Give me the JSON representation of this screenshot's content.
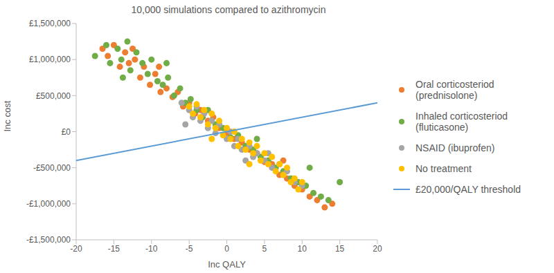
{
  "chart_data": {
    "type": "scatter",
    "title": "10,000 simulations compared to azithromycin",
    "x_label": "Inc QALY",
    "y_label": "Inc cost",
    "xlim": [
      -20,
      20
    ],
    "xticks": [
      -20,
      -15,
      -10,
      -5,
      0,
      5,
      10,
      15,
      20
    ],
    "ylim": [
      -1500000,
      1500000
    ],
    "yticks": [
      {
        "value": -1500000,
        "label": "-£1,500,000"
      },
      {
        "value": -1000000,
        "label": "-£1,000,000"
      },
      {
        "value": -500000,
        "label": "-£500,000"
      },
      {
        "value": 0,
        "label": "£0"
      },
      {
        "value": 500000,
        "label": "£500,000"
      },
      {
        "value": 1000000,
        "label": "£1,000,000"
      },
      {
        "value": 1500000,
        "label": "£1,500,000"
      }
    ],
    "grid": false,
    "legend": "right",
    "series": [
      {
        "name": "Oral corticosteriod (prednisolone)",
        "type": "scatter",
        "marker": "circle",
        "color": "#ed7d31",
        "x": [
          -16.5,
          -15.8,
          -15,
          -14.2,
          -13.5,
          -13,
          -12.2,
          -11.5,
          -11,
          -10.2,
          -9.5,
          -8.8,
          -8,
          -7.2,
          -6.5,
          -5.8,
          -5,
          -4.2,
          -3.5,
          -2.5,
          -1.8,
          -1,
          0,
          1,
          2,
          3,
          4,
          5,
          6,
          7,
          8,
          9,
          10,
          11,
          12,
          13,
          14,
          7.5,
          -12.5,
          -9
        ],
        "values": [
          1150000,
          1050000,
          1200000,
          900000,
          1100000,
          950000,
          1000000,
          750000,
          900000,
          650000,
          800000,
          550000,
          600000,
          480000,
          550000,
          350000,
          400000,
          250000,
          300000,
          150000,
          200000,
          50000,
          -20000,
          -100000,
          -150000,
          -250000,
          -300000,
          -420000,
          -450000,
          -600000,
          -650000,
          -750000,
          -800000,
          -900000,
          -950000,
          -1050000,
          -1000000,
          -400000,
          1150000,
          900000
        ]
      },
      {
        "name": "Inhaled corticosteriod (fluticasone)",
        "type": "scatter",
        "marker": "circle",
        "color": "#70ad47",
        "x": [
          -17.5,
          -16,
          -15.5,
          -14.5,
          -14,
          -13.2,
          -12.8,
          -12,
          -11.2,
          -10.5,
          -10,
          -9.2,
          -8.5,
          -7.8,
          -7,
          -6.2,
          -5.5,
          -4.8,
          -4,
          -3.2,
          -2.5,
          -1.5,
          -0.5,
          0.5,
          1.5,
          2.5,
          3.5,
          4.5,
          5.5,
          6.5,
          7.5,
          8.5,
          9.5,
          10.5,
          11.5,
          12.5,
          13.5,
          15,
          11,
          -13.8,
          -8,
          4
        ],
        "values": [
          1050000,
          1200000,
          950000,
          1150000,
          1000000,
          1250000,
          850000,
          1100000,
          950000,
          800000,
          1000000,
          700000,
          650000,
          750000,
          500000,
          600000,
          400000,
          450000,
          300000,
          200000,
          300000,
          100000,
          50000,
          -80000,
          -50000,
          -200000,
          -250000,
          -350000,
          -400000,
          -500000,
          -550000,
          -650000,
          -700000,
          -750000,
          -850000,
          -900000,
          -950000,
          -700000,
          -500000,
          750000,
          950000,
          -100000
        ]
      },
      {
        "name": "NSAID (ibuprofen)",
        "type": "scatter",
        "marker": "circle",
        "color": "#a5a5a5",
        "x": [
          -6,
          -5,
          -4.5,
          -4,
          -3.5,
          -3,
          -2.5,
          -2,
          -1.5,
          -1,
          0,
          0.5,
          1,
          1.5,
          2,
          3,
          3.5,
          4,
          5,
          5.5,
          6,
          7,
          7.5,
          8,
          9,
          10,
          -5.5,
          2.5
        ],
        "values": [
          400000,
          300000,
          200000,
          350000,
          150000,
          250000,
          50000,
          150000,
          -20000,
          100000,
          -100000,
          0,
          -200000,
          -100000,
          -250000,
          -200000,
          -350000,
          -300000,
          -400000,
          -300000,
          -500000,
          -450000,
          -600000,
          -550000,
          -700000,
          -750000,
          100000,
          -400000
        ]
      },
      {
        "name": "No treatment",
        "type": "scatter",
        "marker": "circle",
        "color": "#ffc000",
        "x": [
          -5,
          -4.5,
          -4,
          -3.5,
          -3,
          -2.5,
          -2,
          -1.5,
          -1,
          -0.5,
          0,
          0.5,
          1,
          1.5,
          2,
          2.5,
          3,
          3.5,
          4,
          4.5,
          5,
          5.5,
          6,
          6.5,
          7,
          7.5,
          8,
          8.5,
          9,
          9.5,
          10,
          -2,
          3
        ],
        "values": [
          350000,
          250000,
          380000,
          200000,
          300000,
          100000,
          250000,
          50000,
          150000,
          -50000,
          50000,
          -100000,
          0,
          -200000,
          -100000,
          -250000,
          -150000,
          -300000,
          -200000,
          -400000,
          -300000,
          -450000,
          -350000,
          -550000,
          -450000,
          -600000,
          -500000,
          -700000,
          -650000,
          -800000,
          -700000,
          -100000,
          -450000
        ]
      },
      {
        "name": "£20,000/QALY threshold",
        "type": "line",
        "line_style": "solid",
        "color": "#5b9bd5",
        "x": [
          -20,
          20
        ],
        "values": [
          -400000,
          400000
        ]
      }
    ]
  }
}
